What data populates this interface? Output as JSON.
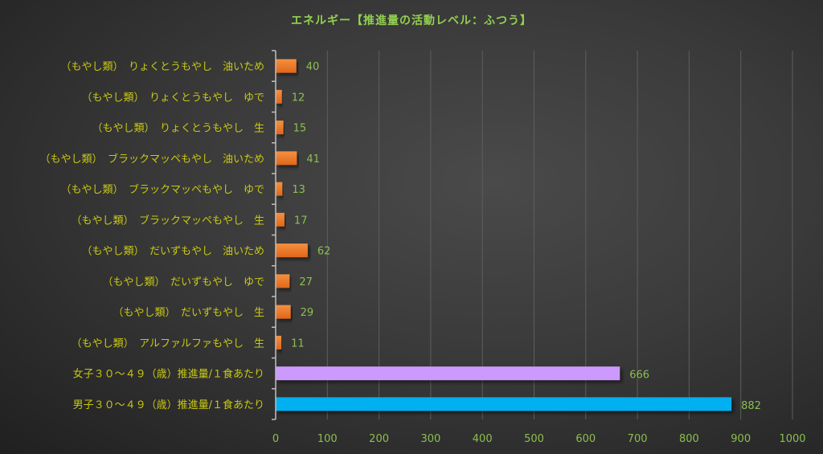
{
  "chart_data": {
    "type": "bar",
    "orientation": "horizontal",
    "title": "エネルギー【推進量の活動レベル：ふつう】",
    "categories": [
      "（もやし類）　りょくとうもやし　油いため",
      "（もやし類）　りょくとうもやし　ゆで",
      "（もやし類）　りょくとうもやし　生",
      "（もやし類）　ブラックマッペもやし　油いため",
      "（もやし類）　ブラックマッペもやし　ゆで",
      "（もやし類）　ブラックマッペもやし　生",
      "（もやし類）　だいずもやし　油いため",
      "（もやし類）　だいずもやし　ゆで",
      "（もやし類）　だいずもやし　生",
      "（もやし類）　アルファルファもやし　生",
      "女子３０～４９（歳）推進量/１食あたり",
      "男子３０～４９（歳）推進量/１食あたり"
    ],
    "values": [
      40,
      12,
      15,
      41,
      13,
      17,
      62,
      27,
      29,
      11,
      666,
      882
    ],
    "bar_colors": [
      "#ed7d31",
      "#ed7d31",
      "#ed7d31",
      "#ed7d31",
      "#ed7d31",
      "#ed7d31",
      "#ed7d31",
      "#ed7d31",
      "#ed7d31",
      "#ed7d31",
      "#cc99ff",
      "#00b0f0"
    ],
    "xlim": [
      0,
      1000
    ],
    "xticks": [
      "0",
      "100",
      "200",
      "300",
      "400",
      "500",
      "600",
      "700",
      "800",
      "900",
      "1000"
    ],
    "grid": true,
    "data_labels": true
  }
}
